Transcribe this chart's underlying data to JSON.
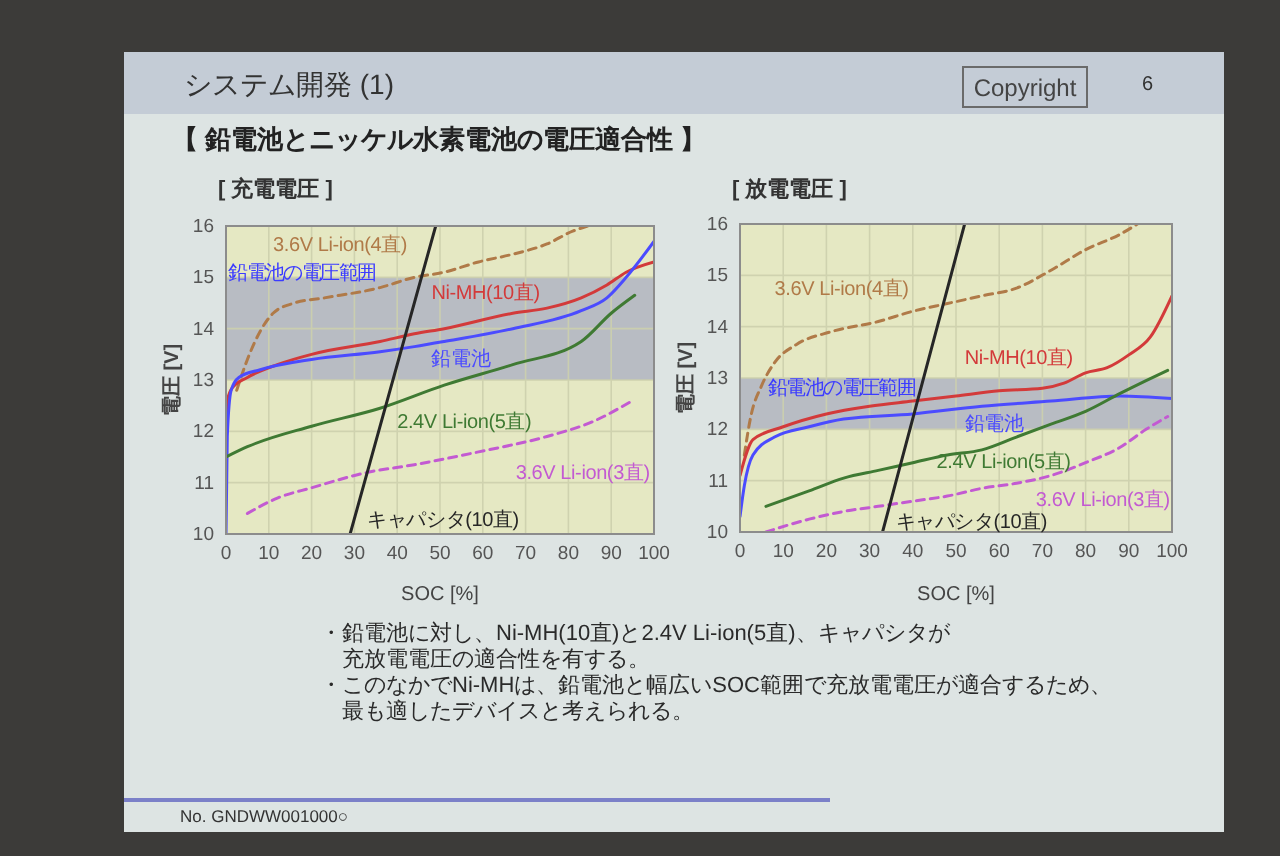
{
  "chart_data": [
    {
      "type": "other",
      "title": "システム開発 (1)",
      "subtitle": "【 鉛電池とニッケル水素電池の電圧適合性 】",
      "annotations": [
        "Copyright",
        "6"
      ]
    },
    {
      "type": "line",
      "title": "[ 充電電圧 ]",
      "xlabel": "SOC [%]",
      "ylabel": "電圧 [V]",
      "xlim": [
        0,
        100
      ],
      "ylim": [
        10,
        16
      ],
      "xticks": [
        0,
        10,
        20,
        30,
        40,
        50,
        60,
        70,
        80,
        90,
        100
      ],
      "yticks": [
        10,
        11,
        12,
        13,
        14,
        15,
        16
      ],
      "grid": true,
      "bands": [
        {
          "axis": "y",
          "from": 13,
          "to": 15,
          "label": "鉛電池の電圧範囲",
          "color": "#b8bcc3"
        }
      ],
      "series": [
        {
          "name": "3.6V Li-ion(4直)",
          "color": "#b07a48",
          "line_style": "dashed",
          "x": [
            2.5,
            5,
            8,
            11,
            16,
            23,
            36,
            44,
            51,
            59,
            67,
            75,
            81,
            84.5
          ],
          "values": [
            12.8,
            13.4,
            13.95,
            14.3,
            14.5,
            14.6,
            14.8,
            15.0,
            15.1,
            15.3,
            15.45,
            15.65,
            15.9,
            16.0
          ]
        },
        {
          "name": "Ni-MH(10直)",
          "color": "#d33a3a",
          "x": [
            0,
            0.3,
            1.5,
            5,
            12,
            20,
            36,
            44,
            51,
            67,
            75,
            83,
            89,
            93.5,
            100
          ],
          "values": [
            12.0,
            12.6,
            12.85,
            13.05,
            13.3,
            13.5,
            13.75,
            13.9,
            14.0,
            14.3,
            14.4,
            14.6,
            14.85,
            15.1,
            15.3
          ]
        },
        {
          "name": "鉛電池",
          "color": "#4b4bff",
          "x": [
            0,
            0.3,
            1.2,
            3,
            8,
            20,
            36,
            44,
            51,
            67,
            83,
            89,
            93.5,
            100
          ],
          "values": [
            10.0,
            11.9,
            12.8,
            13.05,
            13.2,
            13.4,
            13.55,
            13.65,
            13.75,
            14.0,
            14.35,
            14.6,
            15.0,
            15.7
          ]
        },
        {
          "name": "2.4V Li-ion(5直)",
          "color": "#3f7a33",
          "x": [
            0,
            5,
            20,
            36,
            51,
            67,
            83,
            90,
            95.5
          ],
          "values": [
            11.5,
            11.7,
            12.1,
            12.45,
            12.9,
            13.3,
            13.75,
            14.3,
            14.65
          ]
        },
        {
          "name": "3.6V Li-ion(3直)",
          "color": "#c35ad2",
          "line_style": "dashed",
          "x": [
            5,
            12,
            20,
            33,
            44,
            59,
            75,
            86,
            95
          ],
          "values": [
            10.4,
            10.7,
            10.9,
            11.2,
            11.35,
            11.6,
            11.9,
            12.2,
            12.6
          ]
        },
        {
          "name": "キャパシタ(10直)",
          "color": "#262626",
          "x": [
            29,
            49
          ],
          "values": [
            10,
            16
          ]
        }
      ]
    },
    {
      "type": "line",
      "title": "[ 放電電圧 ]",
      "xlabel": "SOC [%]",
      "ylabel": "電圧 [V]",
      "xlim": [
        0,
        100
      ],
      "ylim": [
        10,
        16
      ],
      "xticks": [
        0,
        10,
        20,
        30,
        40,
        50,
        60,
        70,
        80,
        90,
        100
      ],
      "yticks": [
        10,
        11,
        12,
        13,
        14,
        15,
        16
      ],
      "grid": true,
      "bands": [
        {
          "axis": "y",
          "from": 12,
          "to": 13,
          "label": "鉛電池の電圧範囲",
          "color": "#b8bcc3"
        }
      ],
      "series": [
        {
          "name": "3.6V Li-ion(4直)",
          "color": "#b07a48",
          "line_style": "dashed",
          "x": [
            1,
            2.5,
            5,
            8,
            13,
            21,
            32,
            40,
            48,
            56,
            64,
            72,
            80,
            88,
            92
          ],
          "values": [
            11.5,
            12.25,
            12.85,
            13.3,
            13.65,
            13.9,
            14.1,
            14.3,
            14.45,
            14.6,
            14.75,
            15.1,
            15.5,
            15.8,
            16.0
          ]
        },
        {
          "name": "Ni-MH(10直)",
          "color": "#d33a3a",
          "x": [
            0,
            3,
            10,
            20,
            30,
            40,
            50,
            60,
            70,
            75,
            80,
            85,
            90,
            95,
            100
          ],
          "values": [
            11.1,
            11.8,
            12.05,
            12.3,
            12.45,
            12.55,
            12.65,
            12.75,
            12.8,
            12.9,
            13.1,
            13.2,
            13.45,
            13.8,
            14.6
          ]
        },
        {
          "name": "鉛電池",
          "color": "#4b4bff",
          "x": [
            0,
            1,
            3,
            8,
            16,
            24,
            40,
            56,
            72,
            88,
            100
          ],
          "values": [
            10.3,
            10.9,
            11.5,
            11.85,
            12.05,
            12.2,
            12.3,
            12.45,
            12.55,
            12.65,
            12.6
          ]
        },
        {
          "name": "2.4V Li-ion(5直)",
          "color": "#3f7a33",
          "x": [
            6,
            16,
            24,
            32,
            40,
            48,
            56,
            64,
            72,
            80,
            88,
            94,
            99
          ],
          "values": [
            10.5,
            10.8,
            11.05,
            11.2,
            11.35,
            11.5,
            11.6,
            11.85,
            12.1,
            12.35,
            12.7,
            12.95,
            13.15
          ]
        },
        {
          "name": "3.6V Li-ion(3直)",
          "color": "#c35ad2",
          "line_style": "dashed",
          "x": [
            6,
            16,
            24,
            32,
            40,
            48,
            56,
            64,
            72,
            80,
            88,
            94,
            99
          ],
          "values": [
            10.0,
            10.25,
            10.4,
            10.5,
            10.6,
            10.7,
            10.85,
            10.95,
            11.1,
            11.35,
            11.65,
            12.0,
            12.25
          ]
        },
        {
          "name": "キャパシタ(10直)",
          "color": "#262626",
          "x": [
            33,
            52
          ],
          "values": [
            10,
            16
          ]
        }
      ]
    },
    {
      "type": "other",
      "annotations": [
        "・鉛電池に対し、Ni-MH(10直)と2.4V Li-ion(5直)、キャパシタが充放電電圧の適合性を有する。",
        "・このなかでNi-MHは、鉛電池と幅広いSOC範囲で充放電電圧が適合するため、最も適したデバイスと考えられる。",
        "No. GNDWW001000○"
      ]
    }
  ]
}
